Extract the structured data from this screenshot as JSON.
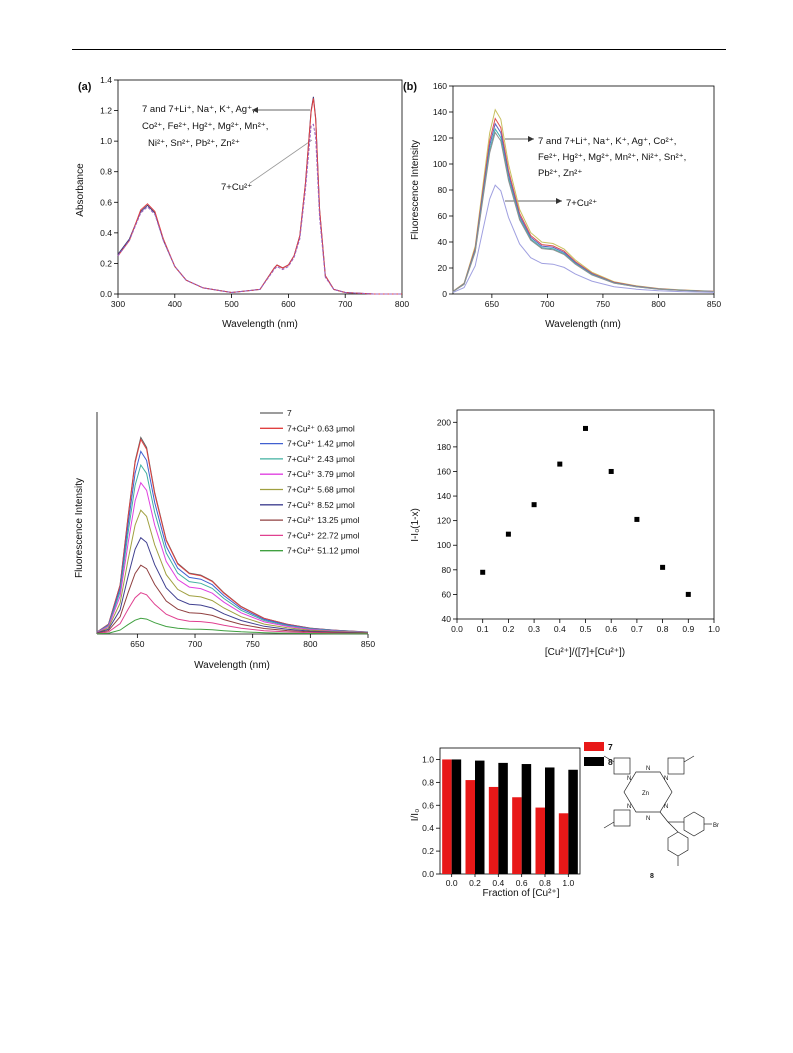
{
  "page": {
    "background": "#ffffff"
  },
  "chart_data": [
    {
      "id": "a",
      "type": "line",
      "panel_label": "(a)",
      "xlabel": "Wavelength (nm)",
      "ylabel": "Absorbance",
      "xlim": [
        300,
        800
      ],
      "ylim": [
        0.0,
        1.4
      ],
      "x_ticks": [
        300,
        400,
        500,
        600,
        700,
        800
      ],
      "y_ticks": [
        0.0,
        0.2,
        0.4,
        0.6,
        0.8,
        1.0,
        1.2,
        1.4
      ],
      "x_tick_labels": [
        "300",
        "400",
        "500",
        "600",
        "700",
        "800"
      ],
      "y_tick_labels": [
        "0.0",
        "0.2",
        "0.4",
        "0.6",
        "0.8",
        "1.0",
        "1.2",
        "1.4"
      ],
      "annotations": [
        {
          "id": "a-ann-1",
          "line1": "7 and 7+Li⁺, Na⁺, K⁺, Ag⁺,",
          "line2": "Co²⁺, Fe²⁺, Hg²⁺, Mg²⁺, Mn²⁺,",
          "line3": "Ni²⁺, Sn²⁺, Pb²⁺, Zn²⁺"
        },
        {
          "id": "a-ann-2",
          "line1": "7+Cu²⁺"
        }
      ],
      "series": [
        {
          "color": "#3a3a7a",
          "values": [
            [
              300,
              0.26
            ],
            [
              320,
              0.36
            ],
            [
              340,
              0.54
            ],
            [
              352,
              0.58
            ],
            [
              365,
              0.53
            ],
            [
              380,
              0.35
            ],
            [
              400,
              0.18
            ],
            [
              420,
              0.09
            ],
            [
              450,
              0.04
            ],
            [
              500,
              0.01
            ],
            [
              550,
              0.03
            ],
            [
              575,
              0.17
            ],
            [
              580,
              0.19
            ],
            [
              590,
              0.17
            ],
            [
              600,
              0.19
            ],
            [
              610,
              0.25
            ],
            [
              620,
              0.38
            ],
            [
              630,
              0.72
            ],
            [
              640,
              1.2
            ],
            [
              644,
              1.29
            ],
            [
              648,
              1.15
            ],
            [
              655,
              0.55
            ],
            [
              665,
              0.12
            ],
            [
              680,
              0.03
            ],
            [
              700,
              0.01
            ],
            [
              750,
              0.0
            ],
            [
              800,
              0.0
            ]
          ]
        },
        {
          "color": "#e04040",
          "values": [
            [
              300,
              0.25
            ],
            [
              320,
              0.35
            ],
            [
              340,
              0.55
            ],
            [
              352,
              0.59
            ],
            [
              365,
              0.54
            ],
            [
              380,
              0.36
            ],
            [
              400,
              0.18
            ],
            [
              420,
              0.09
            ],
            [
              450,
              0.04
            ],
            [
              500,
              0.01
            ],
            [
              550,
              0.03
            ],
            [
              575,
              0.17
            ],
            [
              580,
              0.19
            ],
            [
              590,
              0.17
            ],
            [
              600,
              0.19
            ],
            [
              610,
              0.25
            ],
            [
              620,
              0.38
            ],
            [
              630,
              0.72
            ],
            [
              640,
              1.19
            ],
            [
              644,
              1.28
            ],
            [
              648,
              1.14
            ],
            [
              655,
              0.55
            ],
            [
              665,
              0.12
            ],
            [
              680,
              0.03
            ],
            [
              700,
              0.01
            ],
            [
              750,
              0.0
            ],
            [
              800,
              0.0
            ]
          ]
        },
        {
          "color": "#9a60c0",
          "values": [
            [
              300,
              0.25
            ],
            [
              320,
              0.35
            ],
            [
              340,
              0.53
            ],
            [
              352,
              0.57
            ],
            [
              365,
              0.52
            ],
            [
              380,
              0.35
            ],
            [
              400,
              0.18
            ],
            [
              420,
              0.09
            ],
            [
              450,
              0.04
            ],
            [
              500,
              0.01
            ],
            [
              550,
              0.03
            ],
            [
              575,
              0.16
            ],
            [
              580,
              0.18
            ],
            [
              590,
              0.16
            ],
            [
              600,
              0.18
            ],
            [
              610,
              0.24
            ],
            [
              620,
              0.36
            ],
            [
              630,
              0.68
            ],
            [
              640,
              1.1
            ],
            [
              644,
              1.11
            ],
            [
              648,
              1.02
            ],
            [
              655,
              0.5
            ],
            [
              665,
              0.11
            ],
            [
              680,
              0.03
            ],
            [
              700,
              0.01
            ],
            [
              750,
              0.0
            ],
            [
              800,
              0.0
            ]
          ]
        }
      ]
    },
    {
      "id": "b",
      "type": "line",
      "panel_label": "(b)",
      "xlabel": "Wavelength (nm)",
      "ylabel": "Fluorescence Intensity",
      "xlim": [
        615,
        850
      ],
      "ylim": [
        0,
        160
      ],
      "x_ticks": [
        650,
        700,
        750,
        800,
        850
      ],
      "y_ticks": [
        0,
        20,
        40,
        60,
        80,
        100,
        120,
        140,
        160
      ],
      "x_tick_labels": [
        "650",
        "700",
        "750",
        "800",
        "850"
      ],
      "y_tick_labels": [
        "0",
        "20",
        "40",
        "60",
        "80",
        "100",
        "120",
        "140",
        "160"
      ],
      "annotations": [
        {
          "id": "b-ann-1",
          "line1": "7 and 7+Li⁺, Na⁺, K⁺, Ag⁺, Co²⁺,",
          "line2": "Fe²⁺, Hg²⁺, Mg²⁺, Mn²⁺, Ni²⁺, Sn²⁺,",
          "line3": "Pb²⁺, Zn²⁺"
        },
        {
          "id": "b-ann-2",
          "line1": "7+Cu²⁺"
        }
      ],
      "series": [
        {
          "color": "#c8c060",
          "scale": 1.05
        },
        {
          "color": "#e05050",
          "scale": 1.0
        },
        {
          "color": "#6060c0",
          "scale": 0.97
        },
        {
          "color": "#40b0b0",
          "scale": 0.94
        },
        {
          "color": "#909090",
          "scale": 0.92
        },
        {
          "color": "#a0a0e0",
          "scale": 0.62
        }
      ],
      "base_curve": [
        [
          615,
          2
        ],
        [
          625,
          8
        ],
        [
          635,
          35
        ],
        [
          642,
          80
        ],
        [
          648,
          118
        ],
        [
          653,
          135
        ],
        [
          658,
          128
        ],
        [
          665,
          95
        ],
        [
          675,
          62
        ],
        [
          685,
          45
        ],
        [
          695,
          38
        ],
        [
          705,
          37
        ],
        [
          715,
          33
        ],
        [
          725,
          25
        ],
        [
          740,
          16
        ],
        [
          760,
          9
        ],
        [
          780,
          6
        ],
        [
          800,
          4
        ],
        [
          820,
          3
        ],
        [
          850,
          2
        ]
      ]
    },
    {
      "id": "c",
      "type": "line",
      "xlabel": "Wavelength (nm)",
      "ylabel": "Fluorescence Intensity",
      "xlim": [
        615,
        850
      ],
      "ymax_rel": 1.13,
      "x_ticks": [
        650,
        700,
        750,
        800,
        850
      ],
      "x_tick_labels": [
        "650",
        "700",
        "750",
        "800",
        "850"
      ],
      "legend": [
        {
          "label": "7",
          "color": "#606060",
          "scale": 1.0
        },
        {
          "label": "7+Cu²⁺ 0.63 μmol",
          "color": "#e04040",
          "scale": 0.99
        },
        {
          "label": "7+Cu²⁺ 1.42 μmol",
          "color": "#4060d0",
          "scale": 0.93
        },
        {
          "label": "7+Cu²⁺ 2.43 μmol",
          "color": "#40b0a0",
          "scale": 0.86
        },
        {
          "label": "7+Cu²⁺ 3.79 μmol",
          "color": "#e040e0",
          "scale": 0.77
        },
        {
          "label": "7+Cu²⁺ 5.68 μmol",
          "color": "#a0a040",
          "scale": 0.63
        },
        {
          "label": "7+Cu²⁺ 8.52 μmol",
          "color": "#404090",
          "scale": 0.49
        },
        {
          "label": "7+Cu²⁺ 13.25 μmol",
          "color": "#904040",
          "scale": 0.35
        },
        {
          "label": "7+Cu²⁺ 22.72 μmol",
          "color": "#e04090",
          "scale": 0.21
        },
        {
          "label": "7+Cu²⁺ 51.12 μmol",
          "color": "#40a040",
          "scale": 0.08
        }
      ],
      "base_curve": [
        [
          615,
          0.01
        ],
        [
          625,
          0.05
        ],
        [
          635,
          0.25
        ],
        [
          642,
          0.6
        ],
        [
          648,
          0.88
        ],
        [
          653,
          1.0
        ],
        [
          658,
          0.95
        ],
        [
          665,
          0.72
        ],
        [
          675,
          0.48
        ],
        [
          685,
          0.36
        ],
        [
          695,
          0.31
        ],
        [
          705,
          0.3
        ],
        [
          715,
          0.27
        ],
        [
          725,
          0.21
        ],
        [
          740,
          0.14
        ],
        [
          760,
          0.08
        ],
        [
          780,
          0.05
        ],
        [
          800,
          0.03
        ],
        [
          820,
          0.02
        ],
        [
          850,
          0.01
        ]
      ]
    },
    {
      "id": "d",
      "type": "scatter",
      "xlabel": "[Cu²⁺]/([7]+[Cu²⁺])",
      "ylabel": "I-I₀(1-x)",
      "xlim": [
        0.0,
        1.0
      ],
      "ylim": [
        40,
        210
      ],
      "x_ticks": [
        0.0,
        0.1,
        0.2,
        0.3,
        0.4,
        0.5,
        0.6,
        0.7,
        0.8,
        0.9,
        1.0
      ],
      "y_ticks": [
        40,
        60,
        80,
        100,
        120,
        140,
        160,
        180,
        200
      ],
      "x_tick_labels": [
        "0.0",
        "0.1",
        "0.2",
        "0.3",
        "0.4",
        "0.5",
        "0.6",
        "0.7",
        "0.8",
        "0.9",
        "1.0"
      ],
      "y_tick_labels": [
        "40",
        "60",
        "80",
        "100",
        "120",
        "140",
        "160",
        "180",
        "200"
      ],
      "points": [
        [
          0.1,
          78
        ],
        [
          0.2,
          109
        ],
        [
          0.3,
          133
        ],
        [
          0.4,
          166
        ],
        [
          0.5,
          195
        ],
        [
          0.6,
          160
        ],
        [
          0.7,
          121
        ],
        [
          0.8,
          82
        ],
        [
          0.9,
          60
        ]
      ]
    },
    {
      "id": "e",
      "type": "bar",
      "xlabel": "Fraction of [Cu²⁺]",
      "ylabel": "I/I₀",
      "ylim": [
        0.0,
        1.1
      ],
      "y_ticks": [
        0.0,
        0.2,
        0.4,
        0.6,
        0.8,
        1.0
      ],
      "y_tick_labels": [
        "0.0",
        "0.2",
        "0.4",
        "0.6",
        "0.8",
        "1.0"
      ],
      "categories": [
        "0.0",
        "0.2",
        "0.4",
        "0.6",
        "0.8",
        "1.0"
      ],
      "series": [
        {
          "name": "7",
          "color": "#e81818",
          "values": [
            1.0,
            0.82,
            0.76,
            0.67,
            0.58,
            0.53
          ]
        },
        {
          "name": "8",
          "color": "#000000",
          "values": [
            1.0,
            0.99,
            0.97,
            0.96,
            0.93,
            0.91
          ]
        }
      ]
    }
  ],
  "molecule": {
    "label": "8",
    "metal": "Zn",
    "substituent": "Br",
    "ring_atom": "N"
  }
}
